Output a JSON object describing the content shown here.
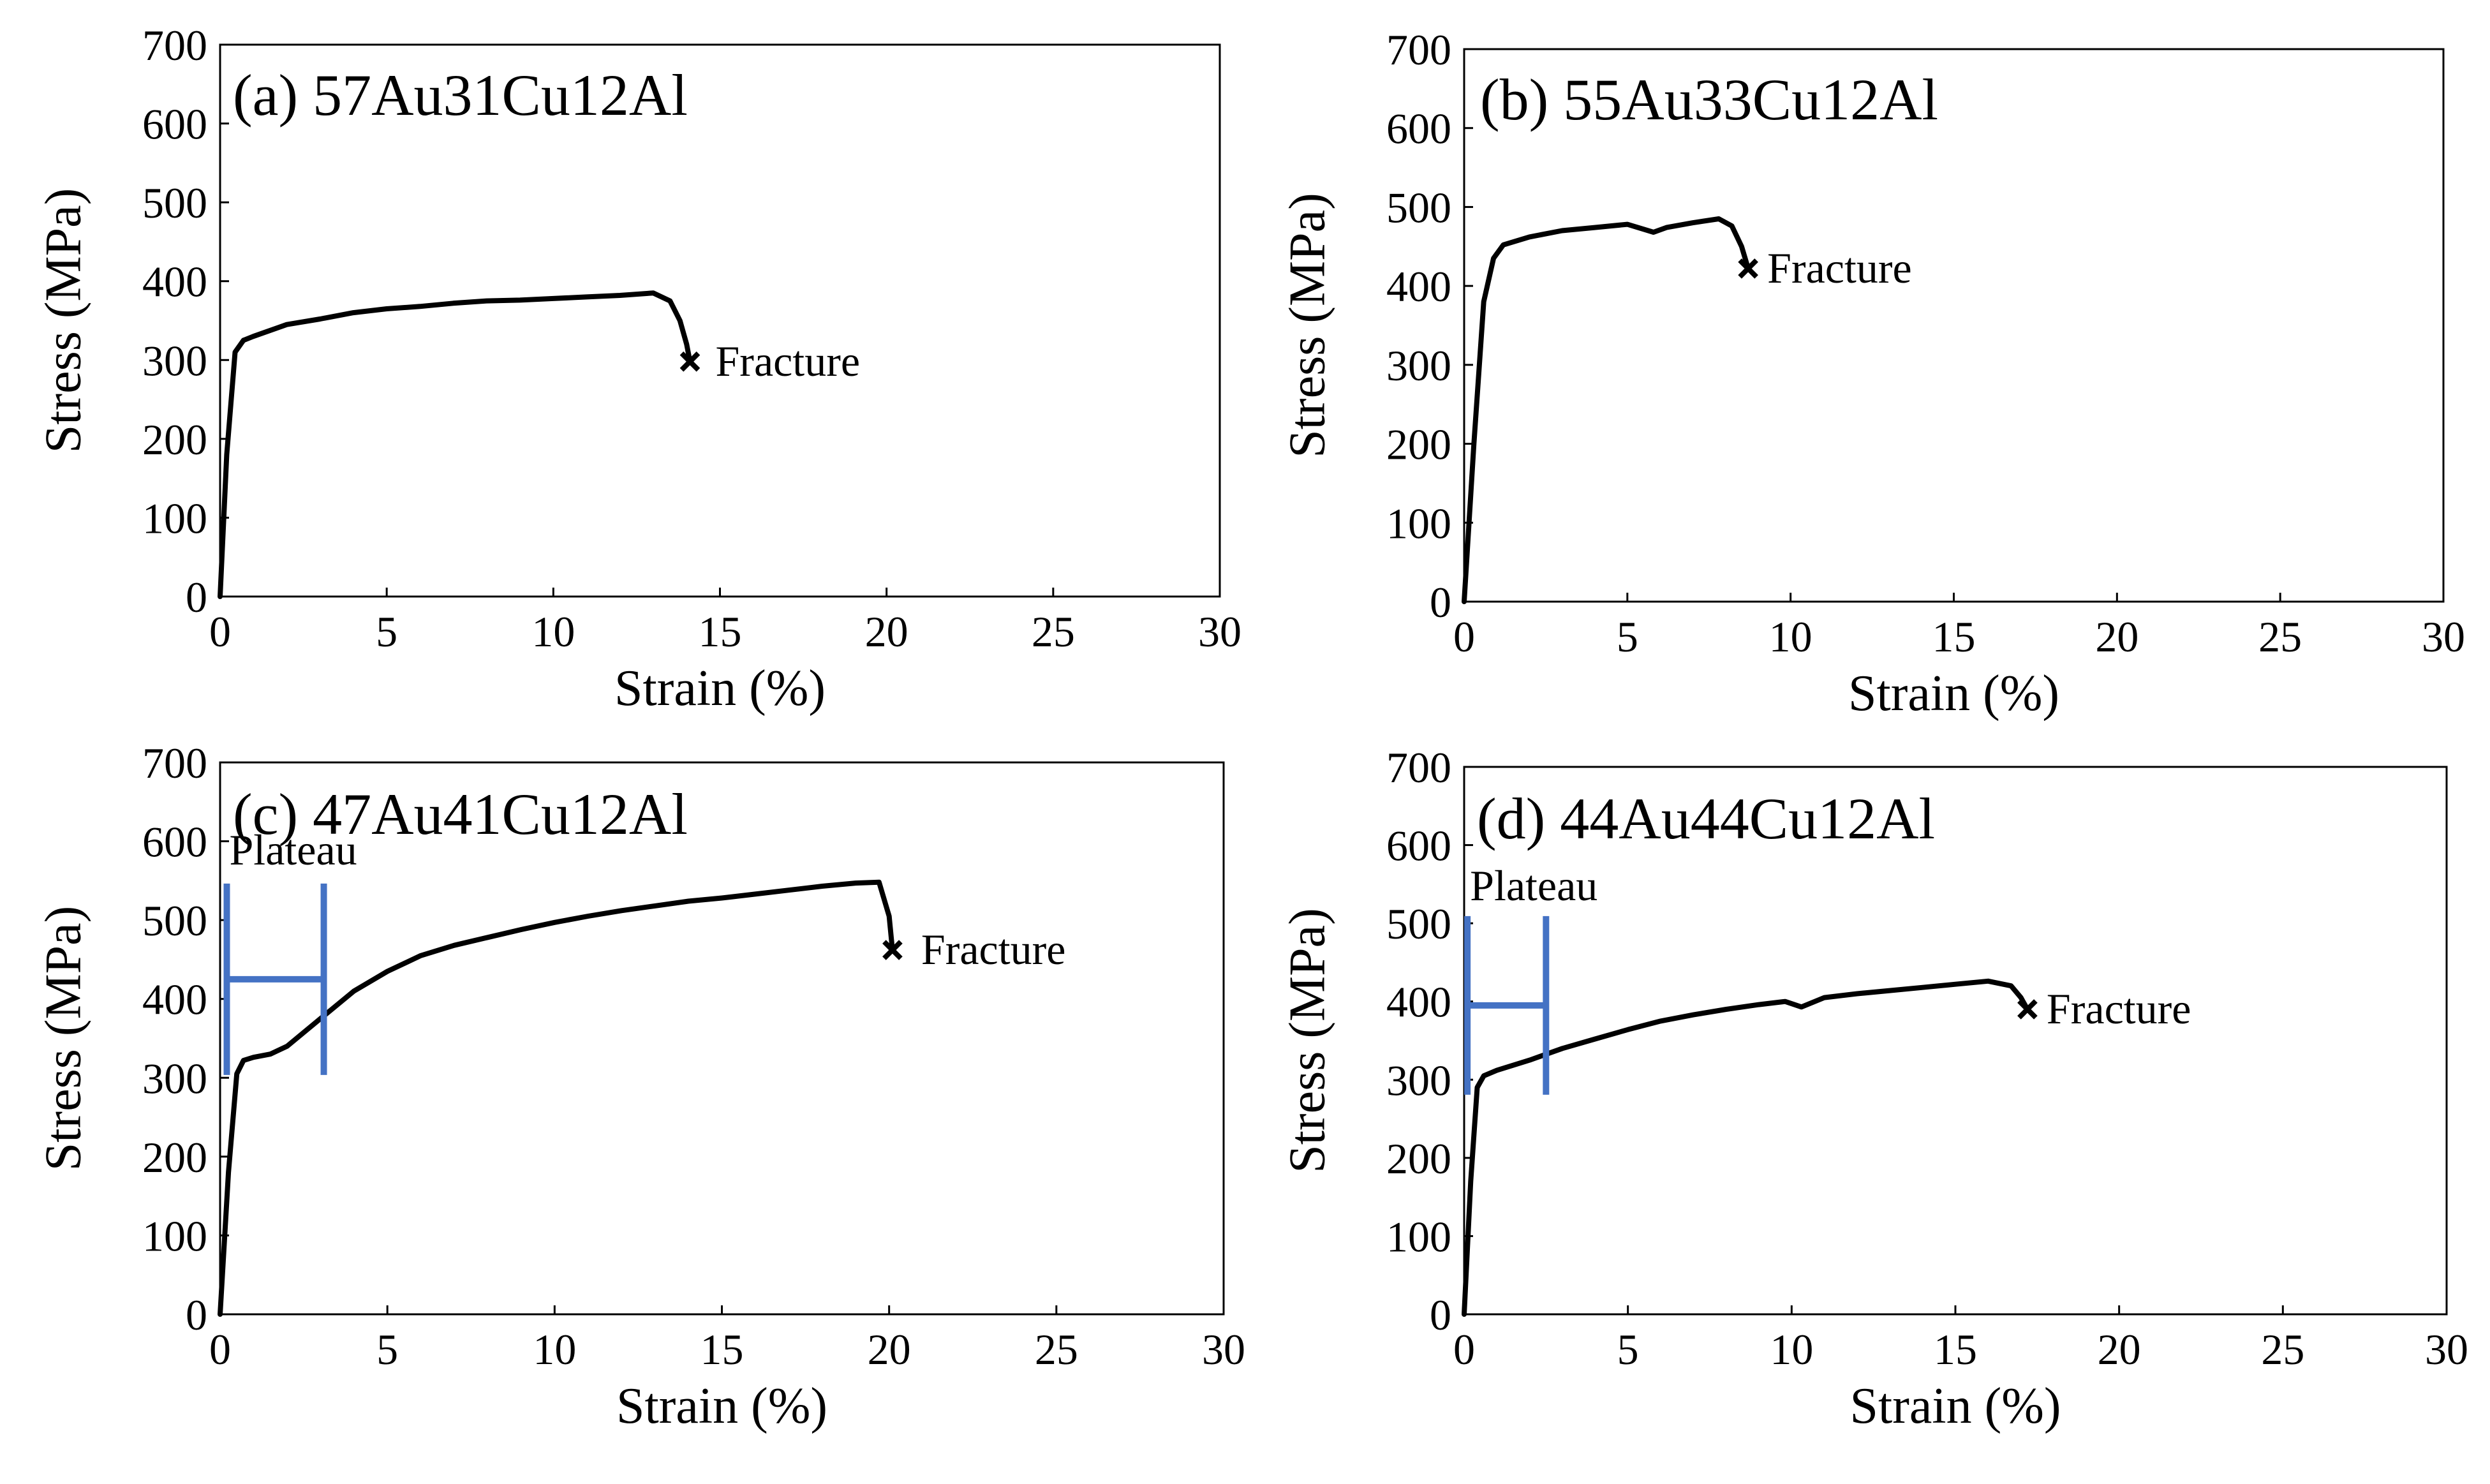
{
  "chart_data": [
    {
      "type": "line",
      "id": "a",
      "title": "(a) 57Au31Cu12Al",
      "xlabel": "Strain (%)",
      "ylabel": "Stress (MPa)",
      "xlim": [
        0,
        30
      ],
      "ylim": [
        0,
        700
      ],
      "xticks": [
        "0",
        "5",
        "10",
        "15",
        "20",
        "25",
        "30"
      ],
      "yticks": [
        "0",
        "100",
        "200",
        "300",
        "400",
        "500",
        "600",
        "700"
      ],
      "grid": false,
      "series": [
        {
          "name": "57Au31Cu12Al",
          "x": [
            0,
            0.2,
            0.45,
            0.7,
            1,
            2,
            3,
            4,
            5,
            6,
            7,
            8,
            9,
            10,
            11,
            12,
            13,
            13.5,
            13.8,
            14.0,
            14.1
          ],
          "y": [
            0,
            180,
            310,
            325,
            330,
            345,
            352,
            360,
            365,
            368,
            372,
            375,
            376,
            378,
            380,
            382,
            385,
            375,
            350,
            320,
            298
          ]
        }
      ],
      "annotations": [
        {
          "text": "Fracture",
          "x": 14.1,
          "y": 298,
          "marker": "x"
        }
      ]
    },
    {
      "type": "line",
      "id": "b",
      "title": "(b) 55Au33Cu12Al",
      "xlabel": "Strain (%)",
      "ylabel": "Stress (MPa)",
      "xlim": [
        0,
        30
      ],
      "ylim": [
        0,
        700
      ],
      "xticks": [
        "0",
        "5",
        "10",
        "15",
        "20",
        "25",
        "30"
      ],
      "yticks": [
        "0",
        "100",
        "200",
        "300",
        "400",
        "500",
        "600",
        "700"
      ],
      "grid": false,
      "series": [
        {
          "name": "55Au33Cu12Al",
          "x": [
            0,
            0.3,
            0.6,
            0.9,
            1.2,
            2,
            3,
            4,
            5,
            5.8,
            6.2,
            7,
            7.8,
            8.2,
            8.5,
            8.7
          ],
          "y": [
            0,
            200,
            380,
            435,
            452,
            462,
            470,
            474,
            478,
            468,
            474,
            480,
            485,
            476,
            450,
            422
          ]
        }
      ],
      "annotations": [
        {
          "text": "Fracture",
          "x": 8.7,
          "y": 422,
          "marker": "x"
        }
      ]
    },
    {
      "type": "line",
      "id": "c",
      "title": "(c) 47Au41Cu12Al",
      "xlabel": "Strain (%)",
      "ylabel": "Stress (MPa)",
      "xlim": [
        0,
        30
      ],
      "ylim": [
        0,
        700
      ],
      "xticks": [
        "0",
        "5",
        "10",
        "15",
        "20",
        "25",
        "30"
      ],
      "yticks": [
        "0",
        "100",
        "200",
        "300",
        "400",
        "500",
        "600",
        "700"
      ],
      "grid": false,
      "series": [
        {
          "name": "47Au41Cu12Al",
          "x": [
            0,
            0.25,
            0.5,
            0.7,
            1,
            1.5,
            2,
            3,
            4,
            5,
            6,
            7,
            8,
            9,
            10,
            11,
            12,
            13,
            14,
            15,
            16,
            17,
            18,
            19,
            19.7,
            20.0,
            20.1
          ],
          "y": [
            0,
            180,
            305,
            322,
            326,
            330,
            340,
            375,
            410,
            435,
            455,
            468,
            478,
            488,
            497,
            505,
            512,
            518,
            524,
            528,
            533,
            538,
            543,
            547,
            548,
            505,
            462
          ]
        }
      ],
      "annotations": [
        {
          "text": "Fracture",
          "x": 20.1,
          "y": 462,
          "marker": "x"
        },
        {
          "text": "Plateau",
          "x0": 0.2,
          "x1": 3.1,
          "y": 425
        }
      ]
    },
    {
      "type": "line",
      "id": "d",
      "title": "(d) 44Au44Cu12Al",
      "xlabel": "Strain (%)",
      "ylabel": "Stress (MPa)",
      "xlim": [
        0,
        30
      ],
      "ylim": [
        0,
        700
      ],
      "xticks": [
        "0",
        "5",
        "10",
        "15",
        "20",
        "25",
        "30"
      ],
      "yticks": [
        "0",
        "100",
        "200",
        "300",
        "400",
        "500",
        "600",
        "700"
      ],
      "grid": false,
      "series": [
        {
          "name": "44Au44Cu12Al",
          "x": [
            0,
            0.2,
            0.4,
            0.6,
            1,
            2,
            3,
            4,
            5,
            6,
            7,
            8,
            9,
            9.8,
            10.3,
            11,
            12,
            13,
            14,
            15,
            16,
            16.7,
            17.0,
            17.2
          ],
          "y": [
            0,
            170,
            290,
            305,
            312,
            325,
            340,
            352,
            364,
            375,
            383,
            390,
            396,
            400,
            393,
            405,
            410,
            414,
            418,
            422,
            426,
            420,
            405,
            390
          ]
        }
      ],
      "annotations": [
        {
          "text": "Fracture",
          "x": 17.2,
          "y": 390,
          "marker": "x"
        },
        {
          "text": "Plateau",
          "x0": 0.1,
          "x1": 2.5,
          "y": 395
        }
      ]
    }
  ],
  "colors": {
    "curve": "#000000",
    "plateau": "#4472C4",
    "axis": "#000000"
  }
}
